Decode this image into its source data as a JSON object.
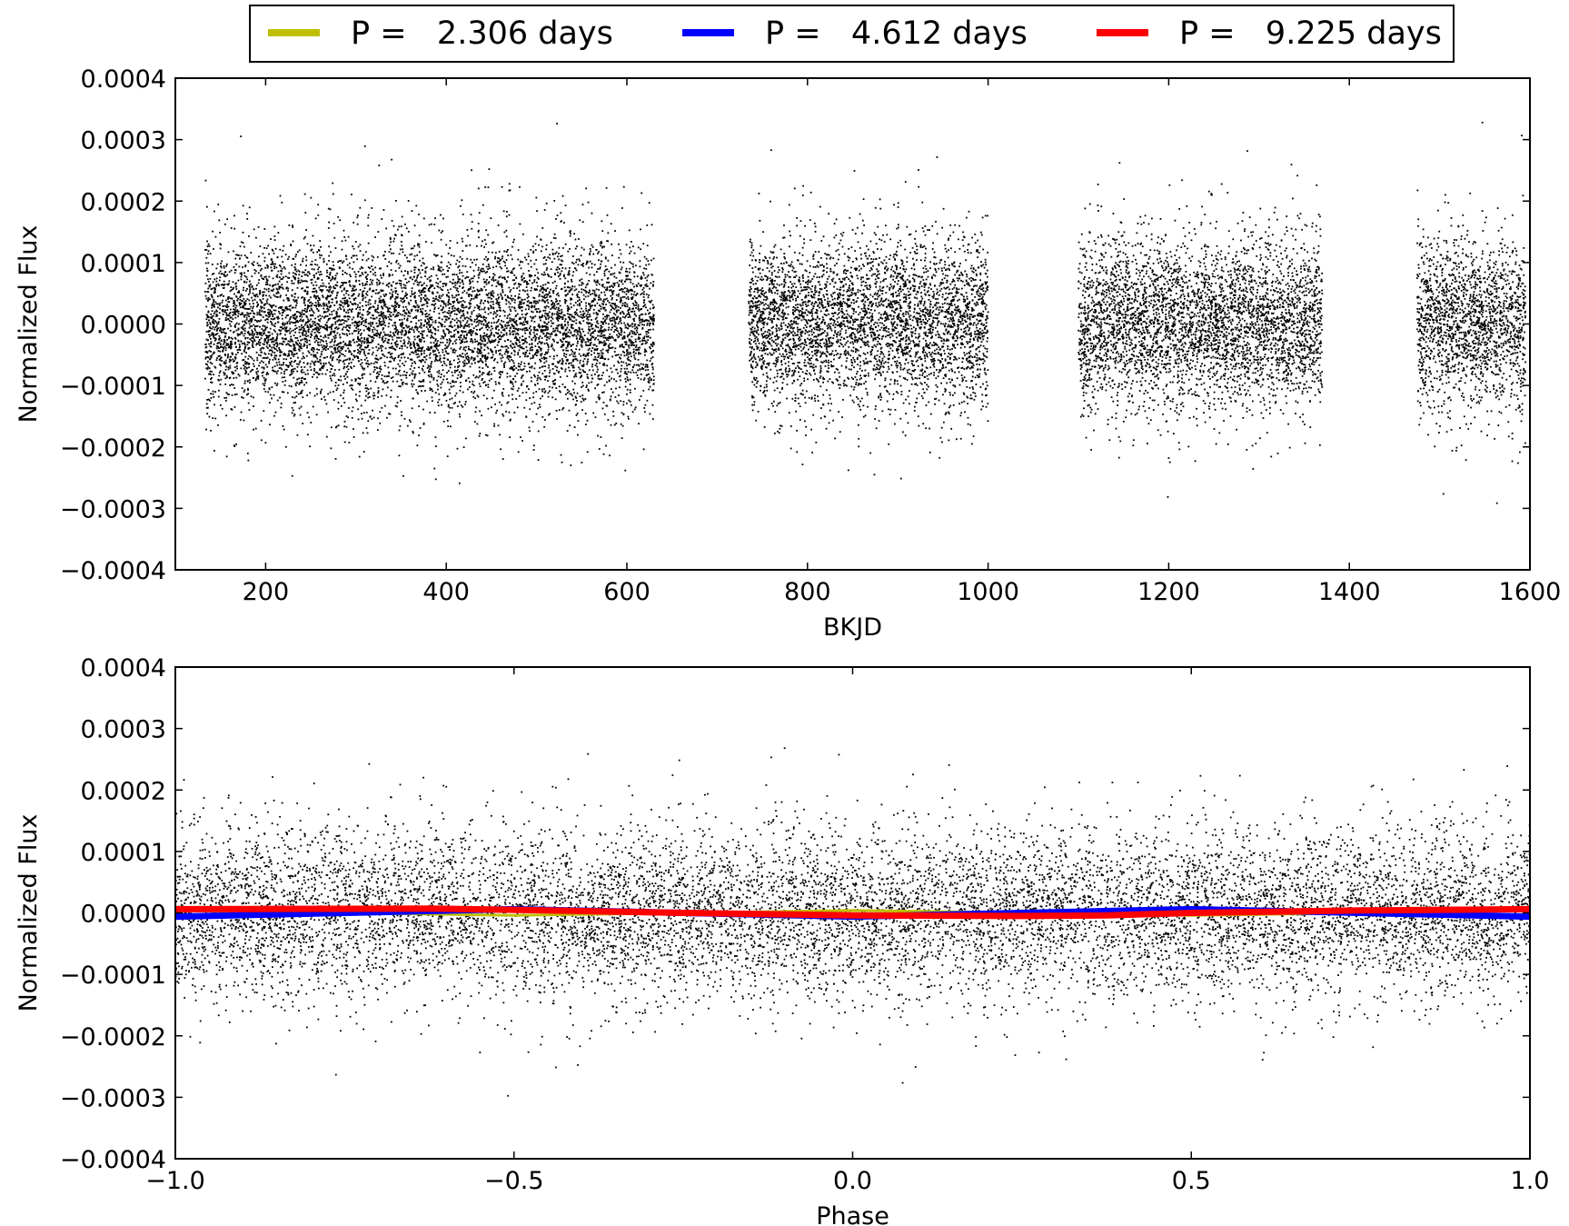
{
  "legend": {
    "entries": [
      {
        "label": "P =   2.306 days",
        "color": "#bfbf00"
      },
      {
        "label": "P =   4.612 days",
        "color": "#0000ff"
      },
      {
        "label": "P =   9.225 days",
        "color": "#ff0000"
      }
    ],
    "placement": "top-center, above plots"
  },
  "colors": {
    "points": "#000000",
    "frame": "#000000",
    "background": "#ffffff"
  },
  "chart_data": [
    {
      "type": "scatter",
      "title": "",
      "xlabel": "BKJD",
      "ylabel": "Normalized Flux",
      "xlim": [
        100,
        1600
      ],
      "ylim": [
        -0.0004,
        0.0004
      ],
      "xticks": [
        200,
        400,
        600,
        800,
        1000,
        1200,
        1400,
        1600
      ],
      "xtick_labels": [
        "200",
        "400",
        "600",
        "800",
        "1000",
        "1200",
        "1400",
        "1600"
      ],
      "yticks": [
        -0.0004,
        -0.0003,
        -0.0002,
        -0.0001,
        0.0,
        0.0001,
        0.0002,
        0.0003,
        0.0004
      ],
      "ytick_labels": [
        "−0.0004",
        "−0.0003",
        "−0.0002",
        "−0.0001",
        "0.0000",
        "0.0001",
        "0.0002",
        "0.0003",
        "0.0004"
      ],
      "grid": false,
      "series": [
        {
          "color": "#000000",
          "marker": "dot",
          "segments": [
            [
              133,
              630
            ],
            [
              735,
              1000
            ],
            [
              1100,
              1370
            ],
            [
              1475,
              1595
            ]
          ],
          "typical_scatter_std": 7e-05,
          "range": [
            -0.00032,
            0.00033
          ]
        }
      ]
    },
    {
      "type": "scatter",
      "title": "",
      "xlabel": "Phase",
      "ylabel": "Normalized Flux",
      "xlim": [
        -1.0,
        1.0
      ],
      "ylim": [
        -0.0004,
        0.0004
      ],
      "xticks": [
        -1.0,
        -0.5,
        0.0,
        0.5,
        1.0
      ],
      "xtick_labels": [
        "−1.0",
        "−0.5",
        "0.0",
        "0.5",
        "1.0"
      ],
      "yticks": [
        -0.0004,
        -0.0003,
        -0.0002,
        -0.0001,
        0.0,
        0.0001,
        0.0002,
        0.0003,
        0.0004
      ],
      "ytick_labels": [
        "−0.0004",
        "−0.0003",
        "−0.0002",
        "−0.0001",
        "0.0000",
        "0.0001",
        "0.0002",
        "0.0003",
        "0.0004"
      ],
      "grid": false,
      "series": [
        {
          "color": "#000000",
          "marker": "dot",
          "x_range": [
            -1.0,
            1.0
          ],
          "typical_scatter_std": 7e-05,
          "range": [
            -0.00033,
            0.00033
          ]
        },
        {
          "name": "P =   2.306 days",
          "color": "#bfbf00",
          "type": "line",
          "x": [
            -1.0,
            -0.5,
            0.0,
            0.5,
            1.0
          ],
          "y": [
            4e-06,
            -4e-06,
            4e-06,
            -4e-06,
            4e-06
          ]
        },
        {
          "name": "P =   4.612 days",
          "color": "#0000ff",
          "type": "line",
          "x": [
            -1.0,
            -0.75,
            -0.5,
            -0.25,
            0.0,
            0.25,
            0.5,
            0.75,
            1.0
          ],
          "y": [
            -6e-06,
            0.0,
            6e-06,
            0.0,
            -6e-06,
            0.0,
            6e-06,
            0.0,
            -6e-06
          ]
        },
        {
          "name": "P =   9.225 days",
          "color": "#ff0000",
          "type": "line",
          "x": [
            -1.0,
            -0.625,
            -0.5,
            -0.25,
            0.0,
            0.25,
            0.375,
            0.5,
            0.75,
            1.0
          ],
          "y": [
            6e-06,
            7e-06,
            5e-06,
            0.0,
            -4e-06,
            -5e-06,
            -4e-06,
            0.0,
            4e-06,
            6e-06
          ]
        }
      ]
    }
  ]
}
